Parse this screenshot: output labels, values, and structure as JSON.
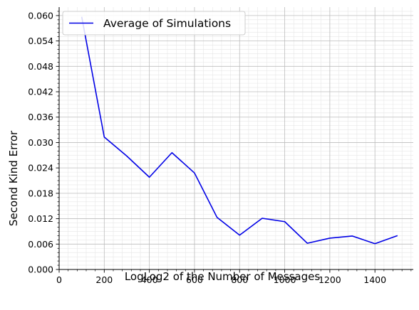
{
  "chart_data": {
    "type": "line",
    "xlabel": "LogLog2 of the Number of Messages",
    "ylabel": "Second Kind Error",
    "xlim": [
      0,
      1570
    ],
    "ylim": [
      0,
      0.062
    ],
    "x_ticks": [
      0,
      200,
      400,
      600,
      800,
      1000,
      1200,
      1400
    ],
    "y_ticks": [
      0.0,
      0.006,
      0.012,
      0.018,
      0.024,
      0.03,
      0.036,
      0.042,
      0.048,
      0.054,
      0.06
    ],
    "x_tick_labels": [
      "0",
      "200",
      "400",
      "600",
      "800",
      "1000",
      "1200",
      "1400"
    ],
    "y_tick_labels": [
      "0.000",
      "0.006",
      "0.012",
      "0.018",
      "0.024",
      "0.030",
      "0.036",
      "0.042",
      "0.048",
      "0.054",
      "0.060"
    ],
    "grid": true,
    "legend_position": "top-left",
    "series": [
      {
        "name": "Average of Simulations",
        "color": "#0000e6",
        "x": [
          100,
          200,
          300,
          400,
          500,
          600,
          700,
          800,
          900,
          1000,
          1100,
          1200,
          1300,
          1400,
          1500
        ],
        "y": [
          0.0597,
          0.0313,
          0.0268,
          0.0218,
          0.0276,
          0.0228,
          0.0123,
          0.0081,
          0.0121,
          0.0113,
          0.0062,
          0.0074,
          0.0079,
          0.0061,
          0.008
        ]
      }
    ]
  }
}
